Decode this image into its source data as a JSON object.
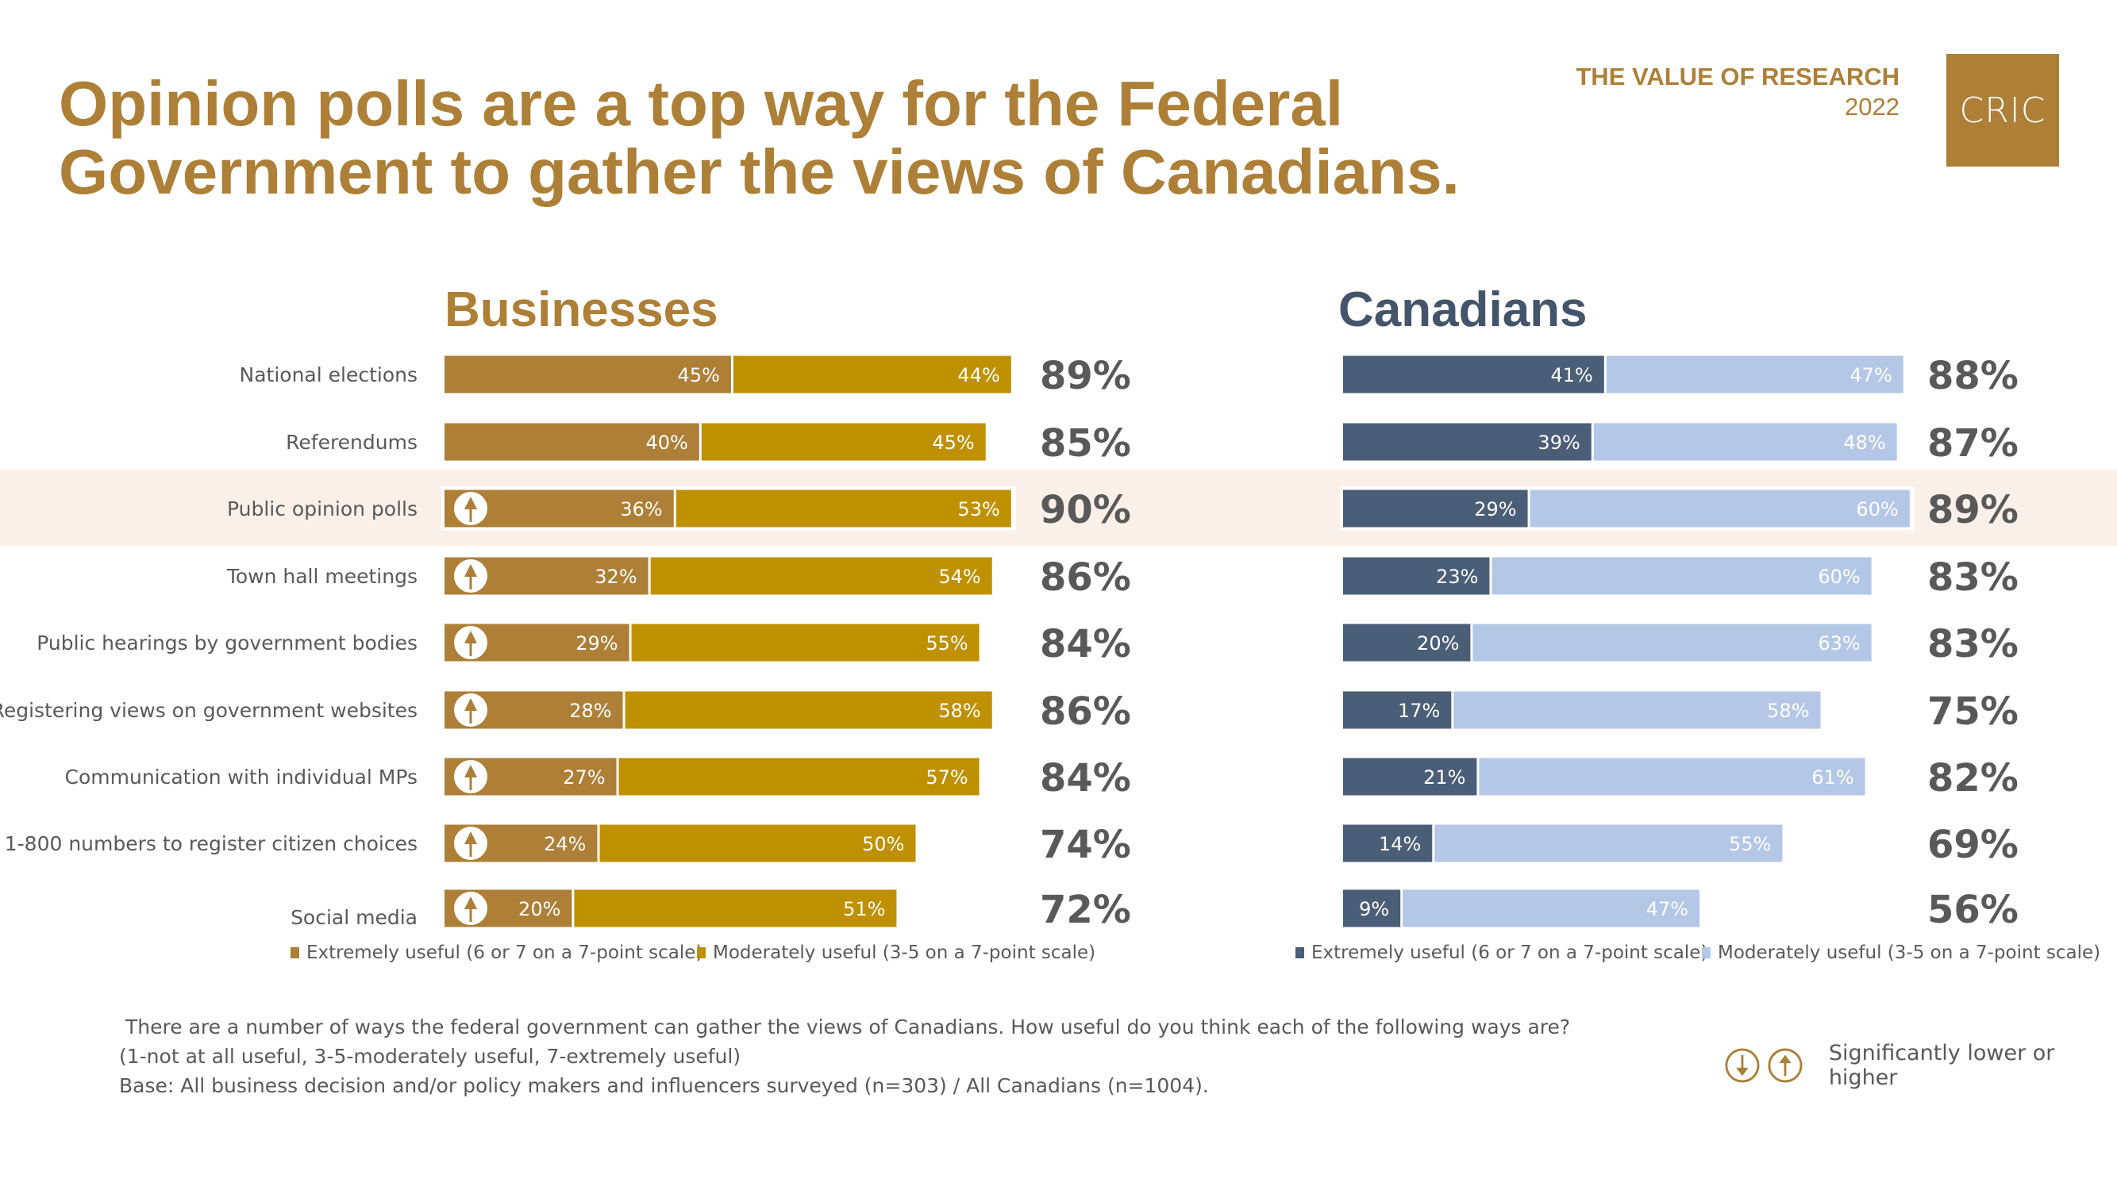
{
  "header": {
    "title_line1": "Opinion polls are a top way for the Federal",
    "title_line2": "Government to gather the views of Canadians.",
    "series_name": "THE VALUE OF RESEARCH",
    "year": "2022",
    "logo_text": "CRIC"
  },
  "colors": {
    "brand_gold": "#ad7f37",
    "business_extremely": "#ad7f37",
    "business_moderately": "#bf9000",
    "canadian_extremely": "#4a5e78",
    "canadian_moderately": "#b4c7e7",
    "canadian_title": "#44546a",
    "highlight_band": "#fbf0e8",
    "total_text": "#595959"
  },
  "chart_data": [
    {
      "type": "bar",
      "orientation": "horizontal-stacked",
      "title": "Businesses",
      "categories": [
        "National elections",
        "Referendums",
        "Public opinion polls",
        "Town hall meetings",
        "Public hearings by government bodies",
        "Registering views on government websites",
        "Communication with individual MPs",
        "1-800 numbers to register citizen choices",
        "Social media"
      ],
      "series": [
        {
          "name": "Extremely useful (6 or 7 on a 7-point scale)",
          "values": [
            45,
            40,
            36,
            32,
            29,
            28,
            27,
            24,
            20
          ]
        },
        {
          "name": "Moderately useful (3-5 on a 7-point scale)",
          "values": [
            44,
            45,
            53,
            54,
            55,
            58,
            57,
            50,
            51
          ]
        }
      ],
      "totals": [
        89,
        85,
        90,
        86,
        84,
        86,
        84,
        74,
        72
      ],
      "significantly_higher": [
        false,
        false,
        true,
        true,
        true,
        true,
        true,
        true,
        true
      ],
      "highlighted_category": "Public opinion polls",
      "xlim": [
        0,
        100
      ],
      "value_suffix": "%",
      "legend": "bottom"
    },
    {
      "type": "bar",
      "orientation": "horizontal-stacked",
      "title": "Canadians",
      "categories": [
        "National elections",
        "Referendums",
        "Public opinion polls",
        "Town hall meetings",
        "Public hearings by government bodies",
        "Registering views on government websites",
        "Communication with individual MPs",
        "1-800 numbers to register citizen choices",
        "Social media"
      ],
      "series": [
        {
          "name": "Extremely useful (6 or 7 on a 7-point scale)",
          "values": [
            41,
            39,
            29,
            23,
            20,
            17,
            21,
            14,
            9
          ]
        },
        {
          "name": "Moderately useful (3-5 on a 7-point scale)",
          "values": [
            47,
            48,
            60,
            60,
            63,
            58,
            61,
            55,
            47
          ]
        }
      ],
      "totals": [
        88,
        87,
        89,
        83,
        83,
        75,
        82,
        69,
        56
      ],
      "highlighted_category": "Public opinion polls",
      "xlim": [
        0,
        100
      ],
      "value_suffix": "%",
      "legend": "bottom"
    }
  ],
  "footnote": {
    "question": "There are a number of ways the federal government can gather the views of Canadians. How useful do you think each of the following ways are?",
    "scale": "(1-not at all useful, 3-5-moderately useful, 7-extremely useful)",
    "base": "Base: All business decision and/or policy makers and influencers surveyed (n=303) / All Canadians (n=1004)."
  },
  "significance_legend": {
    "icons": [
      "arrow-down-circle-icon",
      "arrow-up-circle-icon"
    ],
    "text": "Significantly lower or higher"
  }
}
